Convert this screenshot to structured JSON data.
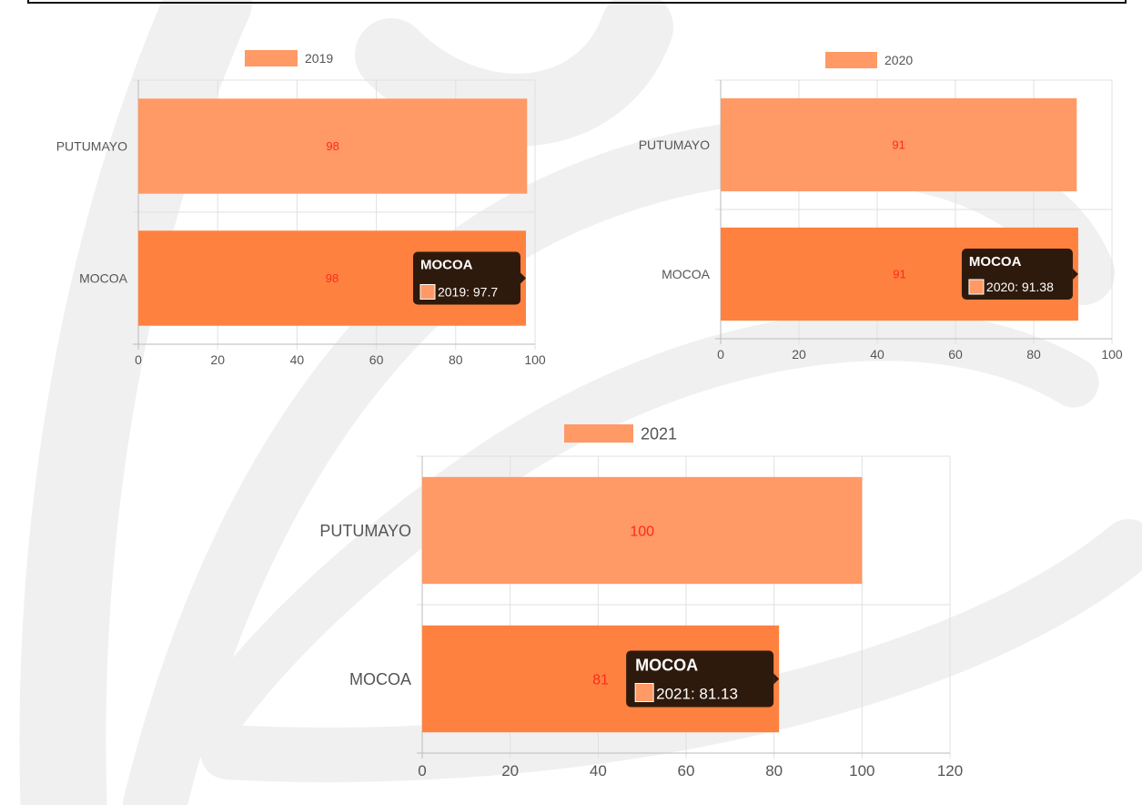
{
  "chart_data": [
    {
      "type": "bar",
      "orientation": "horizontal",
      "categories": [
        "PUTUMAYO",
        "MOCOA"
      ],
      "series": [
        {
          "name": "2019",
          "values": [
            98,
            97.7
          ]
        }
      ],
      "data_labels": [
        "98",
        "98"
      ],
      "xlim": [
        0,
        100
      ],
      "x_ticks": [
        "0",
        "20",
        "40",
        "60",
        "80",
        "100"
      ],
      "grid": true,
      "legend_position": "top",
      "bar_colors": [
        "#ff9966",
        "#ff8140"
      ],
      "label_color": "#ff2a1a",
      "tooltip": {
        "title": "MOCOA",
        "text": "2019: 97.7"
      }
    },
    {
      "type": "bar",
      "orientation": "horizontal",
      "categories": [
        "PUTUMAYO",
        "MOCOA"
      ],
      "series": [
        {
          "name": "2020",
          "values": [
            91,
            91.38
          ]
        }
      ],
      "data_labels": [
        "91",
        "91"
      ],
      "xlim": [
        0,
        100
      ],
      "x_ticks": [
        "0",
        "20",
        "40",
        "60",
        "80",
        "100"
      ],
      "grid": true,
      "legend_position": "top",
      "bar_colors": [
        "#ff9966",
        "#ff8140"
      ],
      "label_color": "#ff2a1a",
      "tooltip": {
        "title": "MOCOA",
        "text": "2020: 91.38"
      }
    },
    {
      "type": "bar",
      "orientation": "horizontal",
      "categories": [
        "PUTUMAYO",
        "MOCOA"
      ],
      "series": [
        {
          "name": "2021",
          "values": [
            100,
            81.13
          ]
        }
      ],
      "data_labels": [
        "100",
        "81"
      ],
      "xlim": [
        0,
        120
      ],
      "x_ticks": [
        "0",
        "20",
        "40",
        "60",
        "80",
        "100",
        "120"
      ],
      "grid": true,
      "legend_position": "top",
      "bar_colors": [
        "#ff9966",
        "#ff8140"
      ],
      "label_color": "#ff2a1a",
      "tooltip": {
        "title": "MOCOA",
        "text": "2021: 81.13"
      }
    }
  ],
  "colors": {
    "legend_swatch": "#ff9966",
    "tooltip_bg": "#2e1a0c",
    "axis": "#bbbbbb",
    "grid": "#e0e0e0",
    "watermark": "#f0f0f0"
  }
}
